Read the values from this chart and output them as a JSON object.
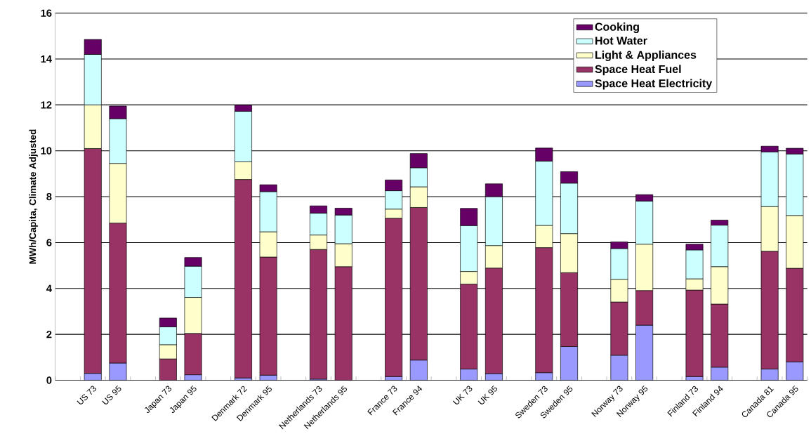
{
  "chart_data": {
    "type": "bar",
    "stacked": true,
    "ylabel": "MWh/Capita, Climate Adjusted",
    "categories": [
      null,
      "US 73",
      "US 95",
      null,
      "Japan 73",
      "Japan 95",
      null,
      "Denmark 72",
      "Denmark 95",
      null,
      "Netherlands 73",
      "Netherlands 95",
      null,
      "France 73",
      "France 94",
      null,
      "UK 73",
      "UK 95",
      null,
      "Sweden 73",
      "Sweden 95",
      null,
      "Norway 73",
      "Norway 95",
      null,
      "Finland 73",
      "Finland 94",
      null,
      "Canada 81",
      "Canada 95"
    ],
    "series": [
      {
        "name": "Space Heat Electricity",
        "color": "#9999ff",
        "values": [
          null,
          0.3,
          0.75,
          null,
          null,
          0.24,
          null,
          0.1,
          0.22,
          null,
          0.05,
          null,
          null,
          0.16,
          0.88,
          null,
          0.49,
          0.29,
          null,
          0.33,
          1.47,
          null,
          1.09,
          2.4,
          null,
          0.16,
          0.57,
          null,
          0.49,
          0.8
        ]
      },
      {
        "name": "Space Heat Fuel",
        "color": "#993366",
        "values": [
          null,
          9.8,
          6.1,
          null,
          0.93,
          1.8,
          null,
          8.65,
          5.15,
          null,
          5.65,
          4.95,
          null,
          6.9,
          6.65,
          null,
          3.7,
          4.6,
          null,
          5.45,
          3.22,
          null,
          2.32,
          1.51,
          null,
          3.77,
          2.75,
          null,
          5.13,
          4.08
        ]
      },
      {
        "name": "Light & Appliances",
        "color": "#ffffcc",
        "values": [
          null,
          1.9,
          2.6,
          null,
          0.62,
          1.57,
          null,
          0.77,
          1.1,
          null,
          0.63,
          1.0,
          null,
          0.4,
          0.9,
          null,
          0.55,
          0.98,
          null,
          0.97,
          1.7,
          null,
          0.99,
          2.02,
          null,
          0.49,
          1.63,
          null,
          1.95,
          2.3
        ]
      },
      {
        "name": "Hot Water",
        "color": "#ccffff",
        "values": [
          null,
          2.2,
          1.95,
          null,
          0.78,
          1.36,
          null,
          2.2,
          1.75,
          null,
          0.95,
          1.25,
          null,
          0.8,
          0.83,
          null,
          2.0,
          2.13,
          null,
          2.8,
          2.2,
          null,
          1.34,
          1.88,
          null,
          1.26,
          1.81,
          null,
          2.38,
          2.68
        ]
      },
      {
        "name": "Cooking",
        "color": "#660066",
        "values": [
          null,
          0.65,
          0.55,
          null,
          0.38,
          0.38,
          null,
          0.28,
          0.3,
          null,
          0.32,
          0.3,
          null,
          0.47,
          0.62,
          null,
          0.75,
          0.56,
          null,
          0.57,
          0.5,
          null,
          0.29,
          0.28,
          null,
          0.25,
          0.22,
          null,
          0.25,
          0.25
        ]
      }
    ],
    "ylim": [
      0,
      16
    ],
    "yticks": [
      0,
      2,
      4,
      6,
      8,
      10,
      12,
      14,
      16
    ],
    "grid": "y",
    "legend": "top right"
  }
}
